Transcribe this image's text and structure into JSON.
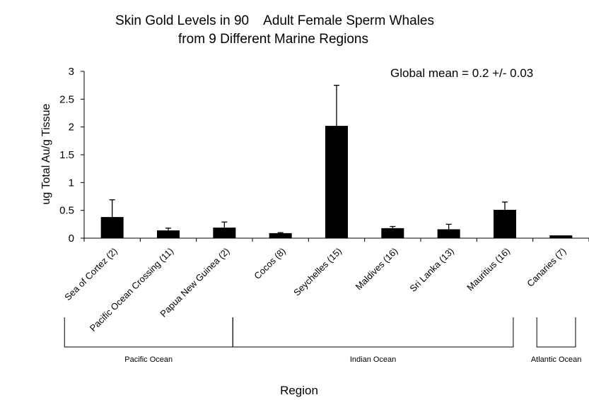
{
  "chart_data": {
    "type": "bar",
    "title": "Skin Gold Levels in 90    Adult Female Sperm Whales",
    "subtitle": "from 9 Different Marine Regions",
    "annotation": "Global mean = 0.2 +/- 0.03",
    "ylabel": "ug Total Au/g Tissue",
    "xlabel": "Region",
    "ylim": [
      0,
      3
    ],
    "yticks": [
      "0",
      "0.5",
      "1",
      "1.5",
      "2",
      "2.5",
      "3"
    ],
    "categories": [
      "Sea of Cortez (2)",
      "Pacific Ocean Crossing (11)",
      "Papua New Guinea (2)",
      "Cocos (8)",
      "Seychelles (15)",
      "Maldives (16)",
      "Sri Lanka (13)",
      "Mauritius (16)",
      "Canaries (7)"
    ],
    "values": [
      0.38,
      0.14,
      0.19,
      0.09,
      2.02,
      0.18,
      0.16,
      0.51,
      0.05
    ],
    "error_upper": [
      0.69,
      0.18,
      0.29,
      0.1,
      2.75,
      0.21,
      0.25,
      0.65,
      0.05
    ],
    "groups": [
      {
        "name": "Pacific Ocean",
        "first": 0,
        "last": 2
      },
      {
        "name": "Indian Ocean",
        "first": 3,
        "last": 7
      },
      {
        "name": "Atlantic Ocean",
        "first": 8,
        "last": 8
      }
    ],
    "bar_color": "#000000",
    "grid": false,
    "legend": "none"
  }
}
